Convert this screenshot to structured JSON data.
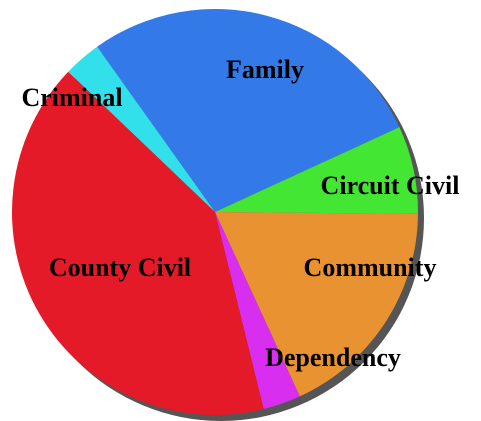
{
  "chart_data": {
    "type": "pie",
    "categories": [
      "Family",
      "Circuit Civil",
      "Community",
      "Dependency",
      "County Civil",
      "Criminal"
    ],
    "values": [
      28,
      7,
      18,
      3,
      41,
      3
    ],
    "colors": [
      "#3479e8",
      "#44e634",
      "#e89232",
      "#d82ef0",
      "#e51a28",
      "#31e0ea"
    ]
  }
}
